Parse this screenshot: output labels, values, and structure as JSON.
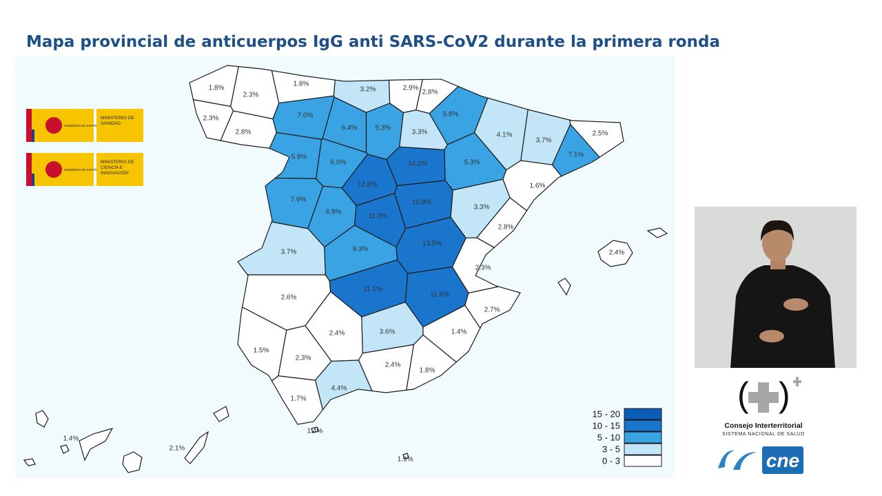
{
  "header": {
    "title": "Mapa provincial de anticuerpos IgG anti SARS-CoV2 durante la primera ronda"
  },
  "logos": [
    {
      "government": "GOBIERNO DE ESPAÑA",
      "ministry": "MINISTERIO DE SANIDAD"
    },
    {
      "government": "GOBIERNO DE ESPAÑA",
      "ministry": "MINISTERIO DE CIENCIA E INNOVACIÓN"
    }
  ],
  "map": {
    "regions": [
      {
        "value": 1.8,
        "label": "1.8%"
      },
      {
        "value": 2.3,
        "label": "2.3%"
      },
      {
        "value": 1.8,
        "label": "1.8%"
      },
      {
        "value": 3.2,
        "label": "3.2%"
      },
      {
        "value": 2.9,
        "label": "2.9%"
      },
      {
        "value": 2.8,
        "label": "2.8%"
      },
      {
        "value": 2.3,
        "label": "2.3%"
      },
      {
        "value": 2.8,
        "label": "2.8%"
      },
      {
        "value": 7.0,
        "label": "7.0%"
      },
      {
        "value": 6.4,
        "label": "6.4%"
      },
      {
        "value": 5.3,
        "label": "5.3%"
      },
      {
        "value": 3.3,
        "label": "3.3%"
      },
      {
        "value": 5.8,
        "label": "5.8%"
      },
      {
        "value": 4.1,
        "label": "4.1%"
      },
      {
        "value": 3.7,
        "label": "3.7%"
      },
      {
        "value": 2.5,
        "label": "2.5%"
      },
      {
        "value": 7.1,
        "label": "7.1%"
      },
      {
        "value": 5.9,
        "label": "5.9%"
      },
      {
        "value": 6.0,
        "label": "6.0%"
      },
      {
        "value": 14.2,
        "label": "14.2%"
      },
      {
        "value": 5.3,
        "label": "5.3%"
      },
      {
        "value": 1.6,
        "label": "1.6%"
      },
      {
        "value": 12.6,
        "label": "12.6%"
      },
      {
        "value": 7.9,
        "label": "7.9%"
      },
      {
        "value": 6.9,
        "label": "6.9%"
      },
      {
        "value": 11.3,
        "label": "11.3%"
      },
      {
        "value": 10.9,
        "label": "10.9%"
      },
      {
        "value": 3.3,
        "label": "3.3%"
      },
      {
        "value": 2.8,
        "label": "2.8%"
      },
      {
        "value": 3.7,
        "label": "3.7%"
      },
      {
        "value": 9.3,
        "label": "9.3%"
      },
      {
        "value": 13.5,
        "label": "13.5%"
      },
      {
        "value": 2.3,
        "label": "2.3%"
      },
      {
        "value": 2.6,
        "label": "2.6%"
      },
      {
        "value": 11.1,
        "label": "11.1%"
      },
      {
        "value": 11.6,
        "label": "11.6%"
      },
      {
        "value": 2.7,
        "label": "2.7%"
      },
      {
        "value": 2.4,
        "label": "2.4%"
      },
      {
        "value": 3.6,
        "label": "3.6%"
      },
      {
        "value": 1.4,
        "label": "1.4%"
      },
      {
        "value": 1.5,
        "label": "1.5%"
      },
      {
        "value": 2.3,
        "label": "2.3%"
      },
      {
        "value": 2.4,
        "label": "2.4%"
      },
      {
        "value": 1.8,
        "label": "1.8%"
      },
      {
        "value": 4.4,
        "label": "4.4%"
      },
      {
        "value": 1.7,
        "label": "1.7%"
      },
      {
        "value": 2.4,
        "label": "2.4%"
      },
      {
        "value": 1.4,
        "label": "1.4%"
      },
      {
        "value": 2.1,
        "label": "2.1%"
      },
      {
        "value": 1.4,
        "label": "1.4%"
      },
      {
        "value": 1.9,
        "label": "1.9%"
      }
    ],
    "legend": [
      {
        "min": 15,
        "max": 20,
        "label": "15 - 20",
        "color": "#0b5cb8"
      },
      {
        "min": 10,
        "max": 15,
        "label": "10 - 15",
        "color": "#1a75cc"
      },
      {
        "min": 5,
        "max": 10,
        "label": "5 - 10",
        "color": "#3aa3e3"
      },
      {
        "min": 3,
        "max": 5,
        "label": "3 - 5",
        "color": "#c2e6f7"
      },
      {
        "min": 0,
        "max": 3,
        "label": "0 - 3",
        "color": "#ffffff"
      }
    ]
  },
  "council": {
    "name": "Consejo Interterritorial",
    "subtitle": "SISTEMA NACIONAL DE SALUD"
  },
  "brand": "cne"
}
